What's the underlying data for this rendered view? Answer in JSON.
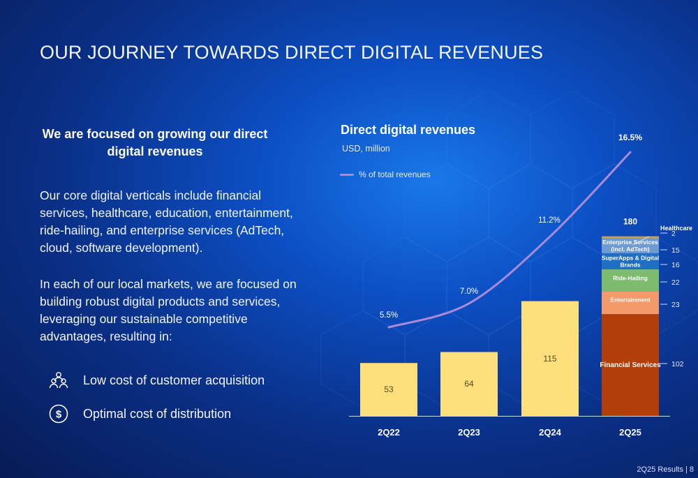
{
  "slide": {
    "title": "OUR JOURNEY TOWARDS DIRECT DIGITAL REVENUES",
    "left_heading": "We are focused on growing our direct digital revenues",
    "paragraph1": "Our core digital verticals include financial services, healthcare, education, entertainment, ride-hailing, and enterprise services (AdTech, cloud, software development).",
    "paragraph2": "In each of our local markets, we are focused on building robust digital products and services, leveraging our sustainable competitive advantages, resulting in:",
    "bullets": [
      {
        "icon": "people-group-icon",
        "text": "Low cost of customer acquisition"
      },
      {
        "icon": "dollar-coin-icon",
        "text": "Optimal cost of distribution"
      }
    ],
    "footer_label": "2Q25 Results |",
    "page_number": "8"
  },
  "chart_data": {
    "type": "bar",
    "title": "Direct digital revenues",
    "unit_label": "USD, million",
    "categories": [
      "2Q22",
      "2Q23",
      "2Q24",
      "2Q25"
    ],
    "values": [
      53,
      64,
      115,
      180
    ],
    "bar_color": "#fde07c",
    "ylim": [
      0,
      200
    ],
    "stack_2Q25": {
      "total": 180,
      "segments": [
        {
          "name": "Financial Services",
          "value": 102,
          "color": "#b23f0a"
        },
        {
          "name": "Entertainment",
          "value": 23,
          "color": "#f29a6a"
        },
        {
          "name": "Ride-Hailing",
          "value": 22,
          "color": "#7dbb6e"
        },
        {
          "name": "SuperApps & Digital Brands",
          "value": 16,
          "color": "#1f6fc4"
        },
        {
          "name": "Enterprise  Services (incl. AdTech)",
          "value": 15,
          "color": "#6f9bd2"
        },
        {
          "name": "Healthcare",
          "value": 2,
          "color": "#c9a24a"
        }
      ]
    },
    "line_series": {
      "name": "% of total revenues",
      "color": "#a98bd8",
      "values": [
        5.5,
        7.0,
        11.2,
        16.5
      ],
      "labels": [
        "5.5%",
        "7.0%",
        "11.2%",
        "16.5%"
      ],
      "ylim": [
        3,
        18
      ]
    },
    "legend": "top-left"
  }
}
